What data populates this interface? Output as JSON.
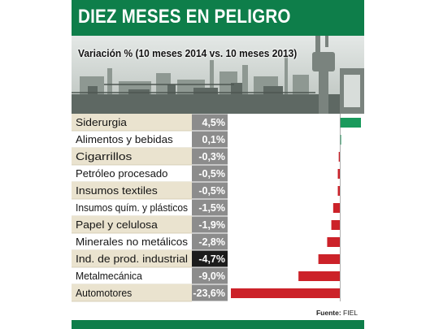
{
  "header": {
    "title": "DIEZ MESES EN PELIGRO",
    "subtitle": "Variación % (10 meses 2014 vs. 10 meses 2013)"
  },
  "footer": {
    "source_label": "Fuente:",
    "source_name": "FIEL"
  },
  "colors": {
    "brand_green": "#0e7e4a",
    "positive_bar": "#1a9a5c",
    "negative_bar": "#cc2229",
    "row_band": "#eae3cf",
    "value_cell": "#8c8c8c",
    "highlight_cell": "#1c1c1c"
  },
  "chart_data": {
    "type": "bar",
    "orientation": "horizontal",
    "title": "DIEZ MESES EN PELIGRO",
    "subtitle": "Variación % (10 meses 2014 vs. 10 meses 2013)",
    "categories": [
      "Siderurgia",
      "Alimentos y bebidas",
      "Cigarrillos",
      "Petróleo procesado",
      "Insumos textiles",
      "Insumos quím. y plásticos",
      "Papel y celulosa",
      "Minerales no metálicos",
      "Ind. de prod. industrial",
      "Metalmecánica",
      "Automotores"
    ],
    "values": [
      4.5,
      0.1,
      -0.3,
      -0.5,
      -0.5,
      -1.5,
      -1.9,
      -2.8,
      -4.7,
      -9.0,
      -23.6
    ],
    "value_labels": [
      "4,5%",
      "0,1%",
      "-0,3%",
      "-0,5%",
      "-0,5%",
      "-1,5%",
      "-1,9%",
      "-2,8%",
      "-4,7%",
      "-9,0%",
      "-23,6%"
    ],
    "highlight": "Ind. de prod. industrial",
    "xlim": [
      -23.6,
      4.5
    ],
    "grid": false,
    "legend": "none"
  }
}
